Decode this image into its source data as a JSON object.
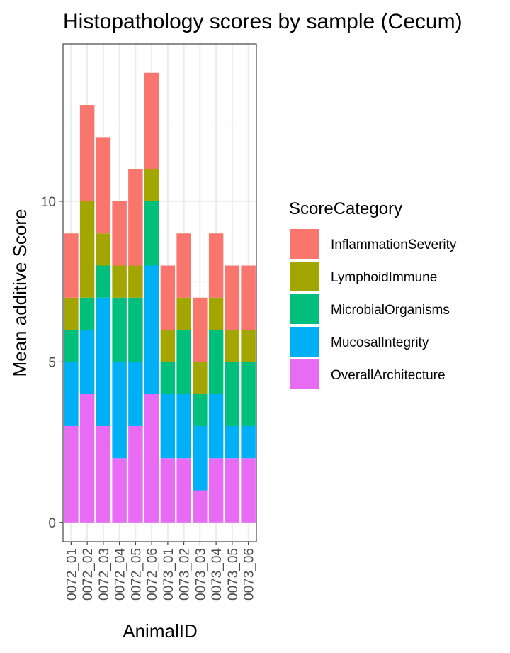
{
  "chart_data": {
    "type": "bar",
    "stacked": true,
    "title": "Histopathology scores by sample (Cecum)",
    "xlabel": "AnimalID",
    "ylabel": "Mean additive Score",
    "ylim": [
      -0.6,
      14.9
    ],
    "yticks": [
      0,
      5,
      10
    ],
    "grid": true,
    "legend": {
      "title": "ScoreCategory",
      "position": "right"
    },
    "categories": [
      "0072_01",
      "0072_02",
      "0072_03",
      "0072_04",
      "0072_05",
      "0072_06",
      "0073_01",
      "0073_02",
      "0073_03",
      "0073_04",
      "0073_05",
      "0073_06"
    ],
    "series": [
      {
        "name": "OverallArchitecture",
        "color": "#E76BF3",
        "values": [
          3,
          4,
          3,
          2,
          3,
          4,
          2,
          2,
          1,
          2,
          2,
          2
        ]
      },
      {
        "name": "MucosalIntegrity",
        "color": "#00B0F6",
        "values": [
          2,
          2,
          4,
          3,
          2,
          4,
          2,
          2,
          2,
          2,
          1,
          1
        ]
      },
      {
        "name": "MicrobialOrganisms",
        "color": "#00BF7D",
        "values": [
          1,
          1,
          1,
          2,
          2,
          2,
          1,
          2,
          1,
          2,
          2,
          2
        ]
      },
      {
        "name": "LymphoidImmune",
        "color": "#A3A500",
        "values": [
          1,
          3,
          1,
          1,
          1,
          1,
          1,
          1,
          1,
          1,
          1,
          1
        ]
      },
      {
        "name": "InflammationSeverity",
        "color": "#F8766D",
        "values": [
          2,
          3,
          3,
          2,
          3,
          3,
          2,
          2,
          2,
          2,
          2,
          2
        ]
      }
    ],
    "legend_order": [
      "InflammationSeverity",
      "LymphoidImmune",
      "MicrobialOrganisms",
      "MucosalIntegrity",
      "OverallArchitecture"
    ]
  }
}
